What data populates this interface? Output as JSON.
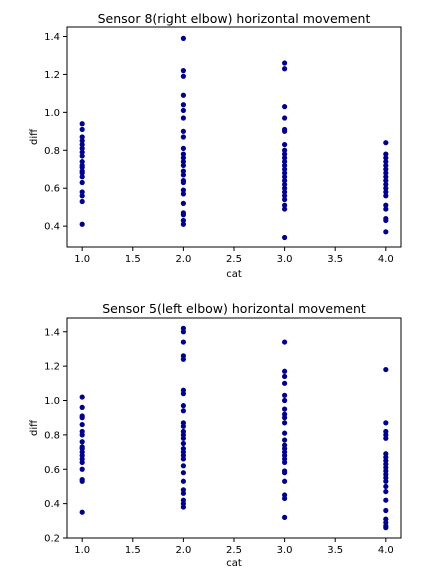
{
  "chart_data": [
    {
      "type": "scatter",
      "title": "Sensor 8(right elbow) horizontal movement",
      "xlabel": "cat",
      "ylabel": "diff",
      "xlim": [
        0.85,
        4.15
      ],
      "ylim": [
        0.29,
        1.45
      ],
      "xticks": [
        1.0,
        1.5,
        2.0,
        2.5,
        3.0,
        3.5,
        4.0
      ],
      "xtick_labels": [
        "1.0",
        "1.5",
        "2.0",
        "2.5",
        "3.0",
        "3.5",
        "4.0"
      ],
      "yticks": [
        0.4,
        0.6,
        0.8,
        1.0,
        1.2,
        1.4
      ],
      "ytick_labels": [
        "0.4",
        "0.6",
        "0.8",
        "1.0",
        "1.2",
        "1.4"
      ],
      "grid": false,
      "marker_color": "#00008b",
      "points": [
        {
          "x": 1,
          "y": 0.94
        },
        {
          "x": 1,
          "y": 0.91
        },
        {
          "x": 1,
          "y": 0.87
        },
        {
          "x": 1,
          "y": 0.85
        },
        {
          "x": 1,
          "y": 0.83
        },
        {
          "x": 1,
          "y": 0.81
        },
        {
          "x": 1,
          "y": 0.79
        },
        {
          "x": 1,
          "y": 0.77
        },
        {
          "x": 1,
          "y": 0.74
        },
        {
          "x": 1,
          "y": 0.72
        },
        {
          "x": 1,
          "y": 0.71
        },
        {
          "x": 1,
          "y": 0.69
        },
        {
          "x": 1,
          "y": 0.68
        },
        {
          "x": 1,
          "y": 0.66
        },
        {
          "x": 1,
          "y": 0.63
        },
        {
          "x": 1,
          "y": 0.58
        },
        {
          "x": 1,
          "y": 0.56
        },
        {
          "x": 1,
          "y": 0.53
        },
        {
          "x": 1,
          "y": 0.41
        },
        {
          "x": 2,
          "y": 1.39
        },
        {
          "x": 2,
          "y": 1.22
        },
        {
          "x": 2,
          "y": 1.19
        },
        {
          "x": 2,
          "y": 1.09
        },
        {
          "x": 2,
          "y": 1.04
        },
        {
          "x": 2,
          "y": 1.01
        },
        {
          "x": 2,
          "y": 0.97
        },
        {
          "x": 2,
          "y": 0.9
        },
        {
          "x": 2,
          "y": 0.87
        },
        {
          "x": 2,
          "y": 0.81
        },
        {
          "x": 2,
          "y": 0.78
        },
        {
          "x": 2,
          "y": 0.76
        },
        {
          "x": 2,
          "y": 0.74
        },
        {
          "x": 2,
          "y": 0.72
        },
        {
          "x": 2,
          "y": 0.69
        },
        {
          "x": 2,
          "y": 0.67
        },
        {
          "x": 2,
          "y": 0.64
        },
        {
          "x": 2,
          "y": 0.63
        },
        {
          "x": 2,
          "y": 0.59
        },
        {
          "x": 2,
          "y": 0.57
        },
        {
          "x": 2,
          "y": 0.52
        },
        {
          "x": 2,
          "y": 0.47
        },
        {
          "x": 2,
          "y": 0.46
        },
        {
          "x": 2,
          "y": 0.43
        },
        {
          "x": 2,
          "y": 0.41
        },
        {
          "x": 3,
          "y": 1.26
        },
        {
          "x": 3,
          "y": 1.23
        },
        {
          "x": 3,
          "y": 1.03
        },
        {
          "x": 3,
          "y": 0.97
        },
        {
          "x": 3,
          "y": 0.91
        },
        {
          "x": 3,
          "y": 0.9
        },
        {
          "x": 3,
          "y": 0.83
        },
        {
          "x": 3,
          "y": 0.8
        },
        {
          "x": 3,
          "y": 0.78
        },
        {
          "x": 3,
          "y": 0.76
        },
        {
          "x": 3,
          "y": 0.74
        },
        {
          "x": 3,
          "y": 0.72
        },
        {
          "x": 3,
          "y": 0.7
        },
        {
          "x": 3,
          "y": 0.68
        },
        {
          "x": 3,
          "y": 0.66
        },
        {
          "x": 3,
          "y": 0.64
        },
        {
          "x": 3,
          "y": 0.62
        },
        {
          "x": 3,
          "y": 0.6
        },
        {
          "x": 3,
          "y": 0.58
        },
        {
          "x": 3,
          "y": 0.56
        },
        {
          "x": 3,
          "y": 0.54
        },
        {
          "x": 3,
          "y": 0.51
        },
        {
          "x": 3,
          "y": 0.49
        },
        {
          "x": 3,
          "y": 0.34
        },
        {
          "x": 4,
          "y": 0.84
        },
        {
          "x": 4,
          "y": 0.78
        },
        {
          "x": 4,
          "y": 0.76
        },
        {
          "x": 4,
          "y": 0.74
        },
        {
          "x": 4,
          "y": 0.72
        },
        {
          "x": 4,
          "y": 0.7
        },
        {
          "x": 4,
          "y": 0.68
        },
        {
          "x": 4,
          "y": 0.66
        },
        {
          "x": 4,
          "y": 0.64
        },
        {
          "x": 4,
          "y": 0.62
        },
        {
          "x": 4,
          "y": 0.6
        },
        {
          "x": 4,
          "y": 0.58
        },
        {
          "x": 4,
          "y": 0.56
        },
        {
          "x": 4,
          "y": 0.51
        },
        {
          "x": 4,
          "y": 0.49
        },
        {
          "x": 4,
          "y": 0.44
        },
        {
          "x": 4,
          "y": 0.43
        },
        {
          "x": 4,
          "y": 0.37
        }
      ]
    },
    {
      "type": "scatter",
      "title": "Sensor 5(left elbow) horizontal movement",
      "xlabel": "cat",
      "ylabel": "diff",
      "xlim": [
        0.85,
        4.15
      ],
      "ylim": [
        0.2,
        1.48
      ],
      "xticks": [
        1.0,
        1.5,
        2.0,
        2.5,
        3.0,
        3.5,
        4.0
      ],
      "xtick_labels": [
        "1.0",
        "1.5",
        "2.0",
        "2.5",
        "3.0",
        "3.5",
        "4.0"
      ],
      "yticks": [
        0.2,
        0.4,
        0.6,
        0.8,
        1.0,
        1.2,
        1.4
      ],
      "ytick_labels": [
        "0.2",
        "0.4",
        "0.6",
        "0.8",
        "1.0",
        "1.2",
        "1.4"
      ],
      "grid": false,
      "marker_color": "#00008b",
      "points": [
        {
          "x": 1,
          "y": 1.02
        },
        {
          "x": 1,
          "y": 0.96
        },
        {
          "x": 1,
          "y": 0.91
        },
        {
          "x": 1,
          "y": 0.9
        },
        {
          "x": 1,
          "y": 0.86
        },
        {
          "x": 1,
          "y": 0.82
        },
        {
          "x": 1,
          "y": 0.8
        },
        {
          "x": 1,
          "y": 0.76
        },
        {
          "x": 1,
          "y": 0.73
        },
        {
          "x": 1,
          "y": 0.72
        },
        {
          "x": 1,
          "y": 0.7
        },
        {
          "x": 1,
          "y": 0.68
        },
        {
          "x": 1,
          "y": 0.66
        },
        {
          "x": 1,
          "y": 0.64
        },
        {
          "x": 1,
          "y": 0.6
        },
        {
          "x": 1,
          "y": 0.54
        },
        {
          "x": 1,
          "y": 0.53
        },
        {
          "x": 1,
          "y": 0.35
        },
        {
          "x": 2,
          "y": 1.42
        },
        {
          "x": 2,
          "y": 1.4
        },
        {
          "x": 2,
          "y": 1.34
        },
        {
          "x": 2,
          "y": 1.26
        },
        {
          "x": 2,
          "y": 1.24
        },
        {
          "x": 2,
          "y": 1.06
        },
        {
          "x": 2,
          "y": 1.04
        },
        {
          "x": 2,
          "y": 0.97
        },
        {
          "x": 2,
          "y": 0.94
        },
        {
          "x": 2,
          "y": 0.87
        },
        {
          "x": 2,
          "y": 0.85
        },
        {
          "x": 2,
          "y": 0.82
        },
        {
          "x": 2,
          "y": 0.8
        },
        {
          "x": 2,
          "y": 0.78
        },
        {
          "x": 2,
          "y": 0.75
        },
        {
          "x": 2,
          "y": 0.72
        },
        {
          "x": 2,
          "y": 0.7
        },
        {
          "x": 2,
          "y": 0.68
        },
        {
          "x": 2,
          "y": 0.66
        },
        {
          "x": 2,
          "y": 0.62
        },
        {
          "x": 2,
          "y": 0.58
        },
        {
          "x": 2,
          "y": 0.53
        },
        {
          "x": 2,
          "y": 0.48
        },
        {
          "x": 2,
          "y": 0.46
        },
        {
          "x": 2,
          "y": 0.42
        },
        {
          "x": 2,
          "y": 0.4
        },
        {
          "x": 2,
          "y": 0.38
        },
        {
          "x": 3,
          "y": 1.34
        },
        {
          "x": 3,
          "y": 1.17
        },
        {
          "x": 3,
          "y": 1.14
        },
        {
          "x": 3,
          "y": 1.1
        },
        {
          "x": 3,
          "y": 1.03
        },
        {
          "x": 3,
          "y": 1.0
        },
        {
          "x": 3,
          "y": 0.95
        },
        {
          "x": 3,
          "y": 0.92
        },
        {
          "x": 3,
          "y": 0.9
        },
        {
          "x": 3,
          "y": 0.87
        },
        {
          "x": 3,
          "y": 0.81
        },
        {
          "x": 3,
          "y": 0.77
        },
        {
          "x": 3,
          "y": 0.74
        },
        {
          "x": 3,
          "y": 0.72
        },
        {
          "x": 3,
          "y": 0.7
        },
        {
          "x": 3,
          "y": 0.68
        },
        {
          "x": 3,
          "y": 0.66
        },
        {
          "x": 3,
          "y": 0.64
        },
        {
          "x": 3,
          "y": 0.59
        },
        {
          "x": 3,
          "y": 0.58
        },
        {
          "x": 3,
          "y": 0.53
        },
        {
          "x": 3,
          "y": 0.45
        },
        {
          "x": 3,
          "y": 0.43
        },
        {
          "x": 3,
          "y": 0.32
        },
        {
          "x": 4,
          "y": 1.18
        },
        {
          "x": 4,
          "y": 0.87
        },
        {
          "x": 4,
          "y": 0.82
        },
        {
          "x": 4,
          "y": 0.8
        },
        {
          "x": 4,
          "y": 0.78
        },
        {
          "x": 4,
          "y": 0.69
        },
        {
          "x": 4,
          "y": 0.67
        },
        {
          "x": 4,
          "y": 0.65
        },
        {
          "x": 4,
          "y": 0.63
        },
        {
          "x": 4,
          "y": 0.61
        },
        {
          "x": 4,
          "y": 0.59
        },
        {
          "x": 4,
          "y": 0.57
        },
        {
          "x": 4,
          "y": 0.55
        },
        {
          "x": 4,
          "y": 0.53
        },
        {
          "x": 4,
          "y": 0.5
        },
        {
          "x": 4,
          "y": 0.47
        },
        {
          "x": 4,
          "y": 0.42
        },
        {
          "x": 4,
          "y": 0.36
        },
        {
          "x": 4,
          "y": 0.31
        },
        {
          "x": 4,
          "y": 0.29
        },
        {
          "x": 4,
          "y": 0.27
        },
        {
          "x": 4,
          "y": 0.26
        }
      ]
    }
  ]
}
